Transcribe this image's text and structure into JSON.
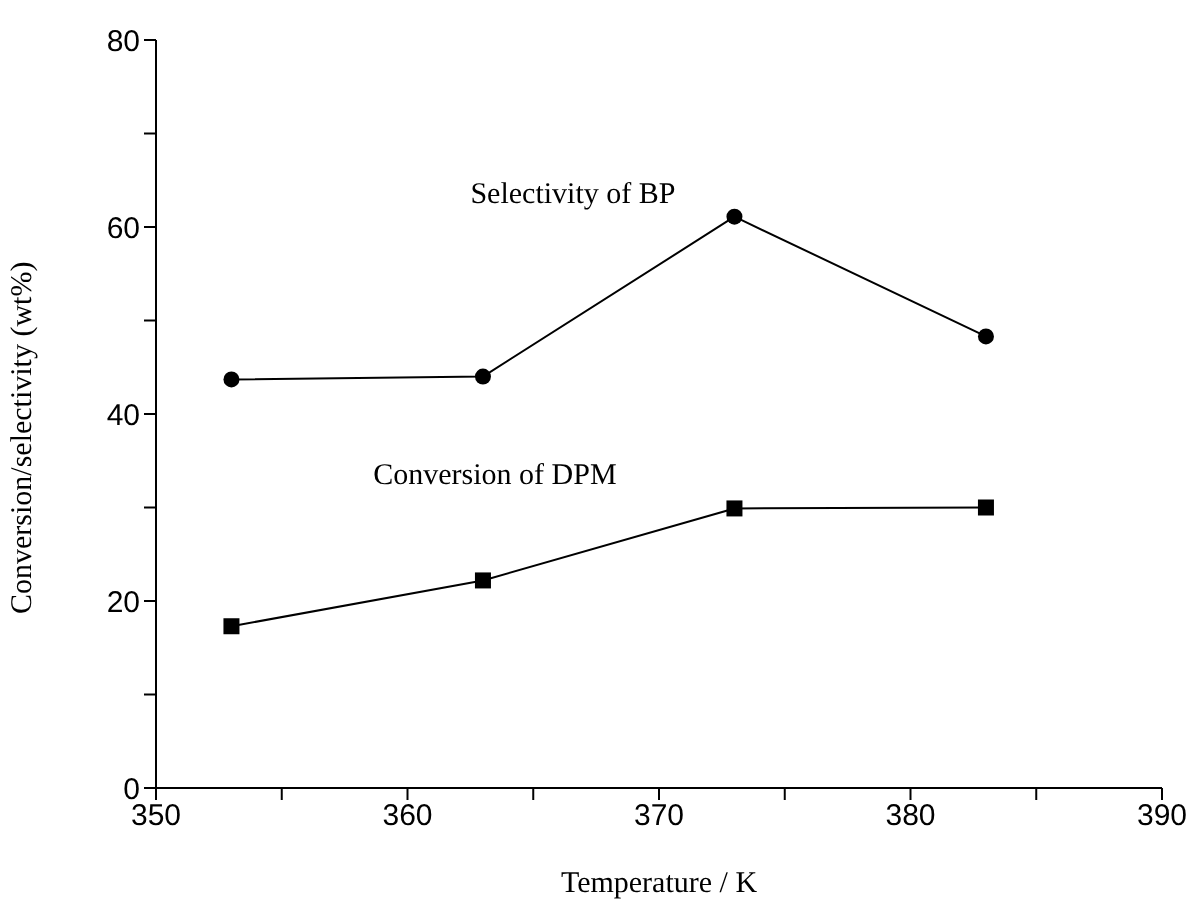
{
  "chart_data": {
    "type": "line",
    "xlabel": "Temperature / K",
    "ylabel": "Conversion/selectivity (wt%)",
    "x": [
      353,
      363,
      373,
      383
    ],
    "series": [
      {
        "name": "Selectivity of BP",
        "color": "#000000",
        "marker": "circle",
        "values": [
          43.7,
          44.0,
          61.1,
          48.3
        ]
      },
      {
        "name": "Conversion of DPM",
        "color": "#000000",
        "marker": "square",
        "values": [
          17.3,
          22.2,
          29.9,
          30.0
        ]
      }
    ],
    "xlim": [
      350,
      390
    ],
    "xticks": [
      350,
      {
        "value": 355,
        "label": null
      },
      360,
      {
        "value": 365,
        "label": null
      },
      370,
      {
        "value": 375,
        "label": null
      },
      380,
      {
        "value": 385,
        "label": null
      },
      390
    ],
    "ylim": [
      0,
      80
    ],
    "yticks": [
      0,
      {
        "value": 10,
        "label": null
      },
      20,
      {
        "value": 30,
        "label": null
      },
      40,
      {
        "value": 50,
        "label": null
      },
      60,
      {
        "value": 70,
        "label": null
      },
      80
    ],
    "grid": false,
    "legend": false,
    "line_style": "solid"
  }
}
